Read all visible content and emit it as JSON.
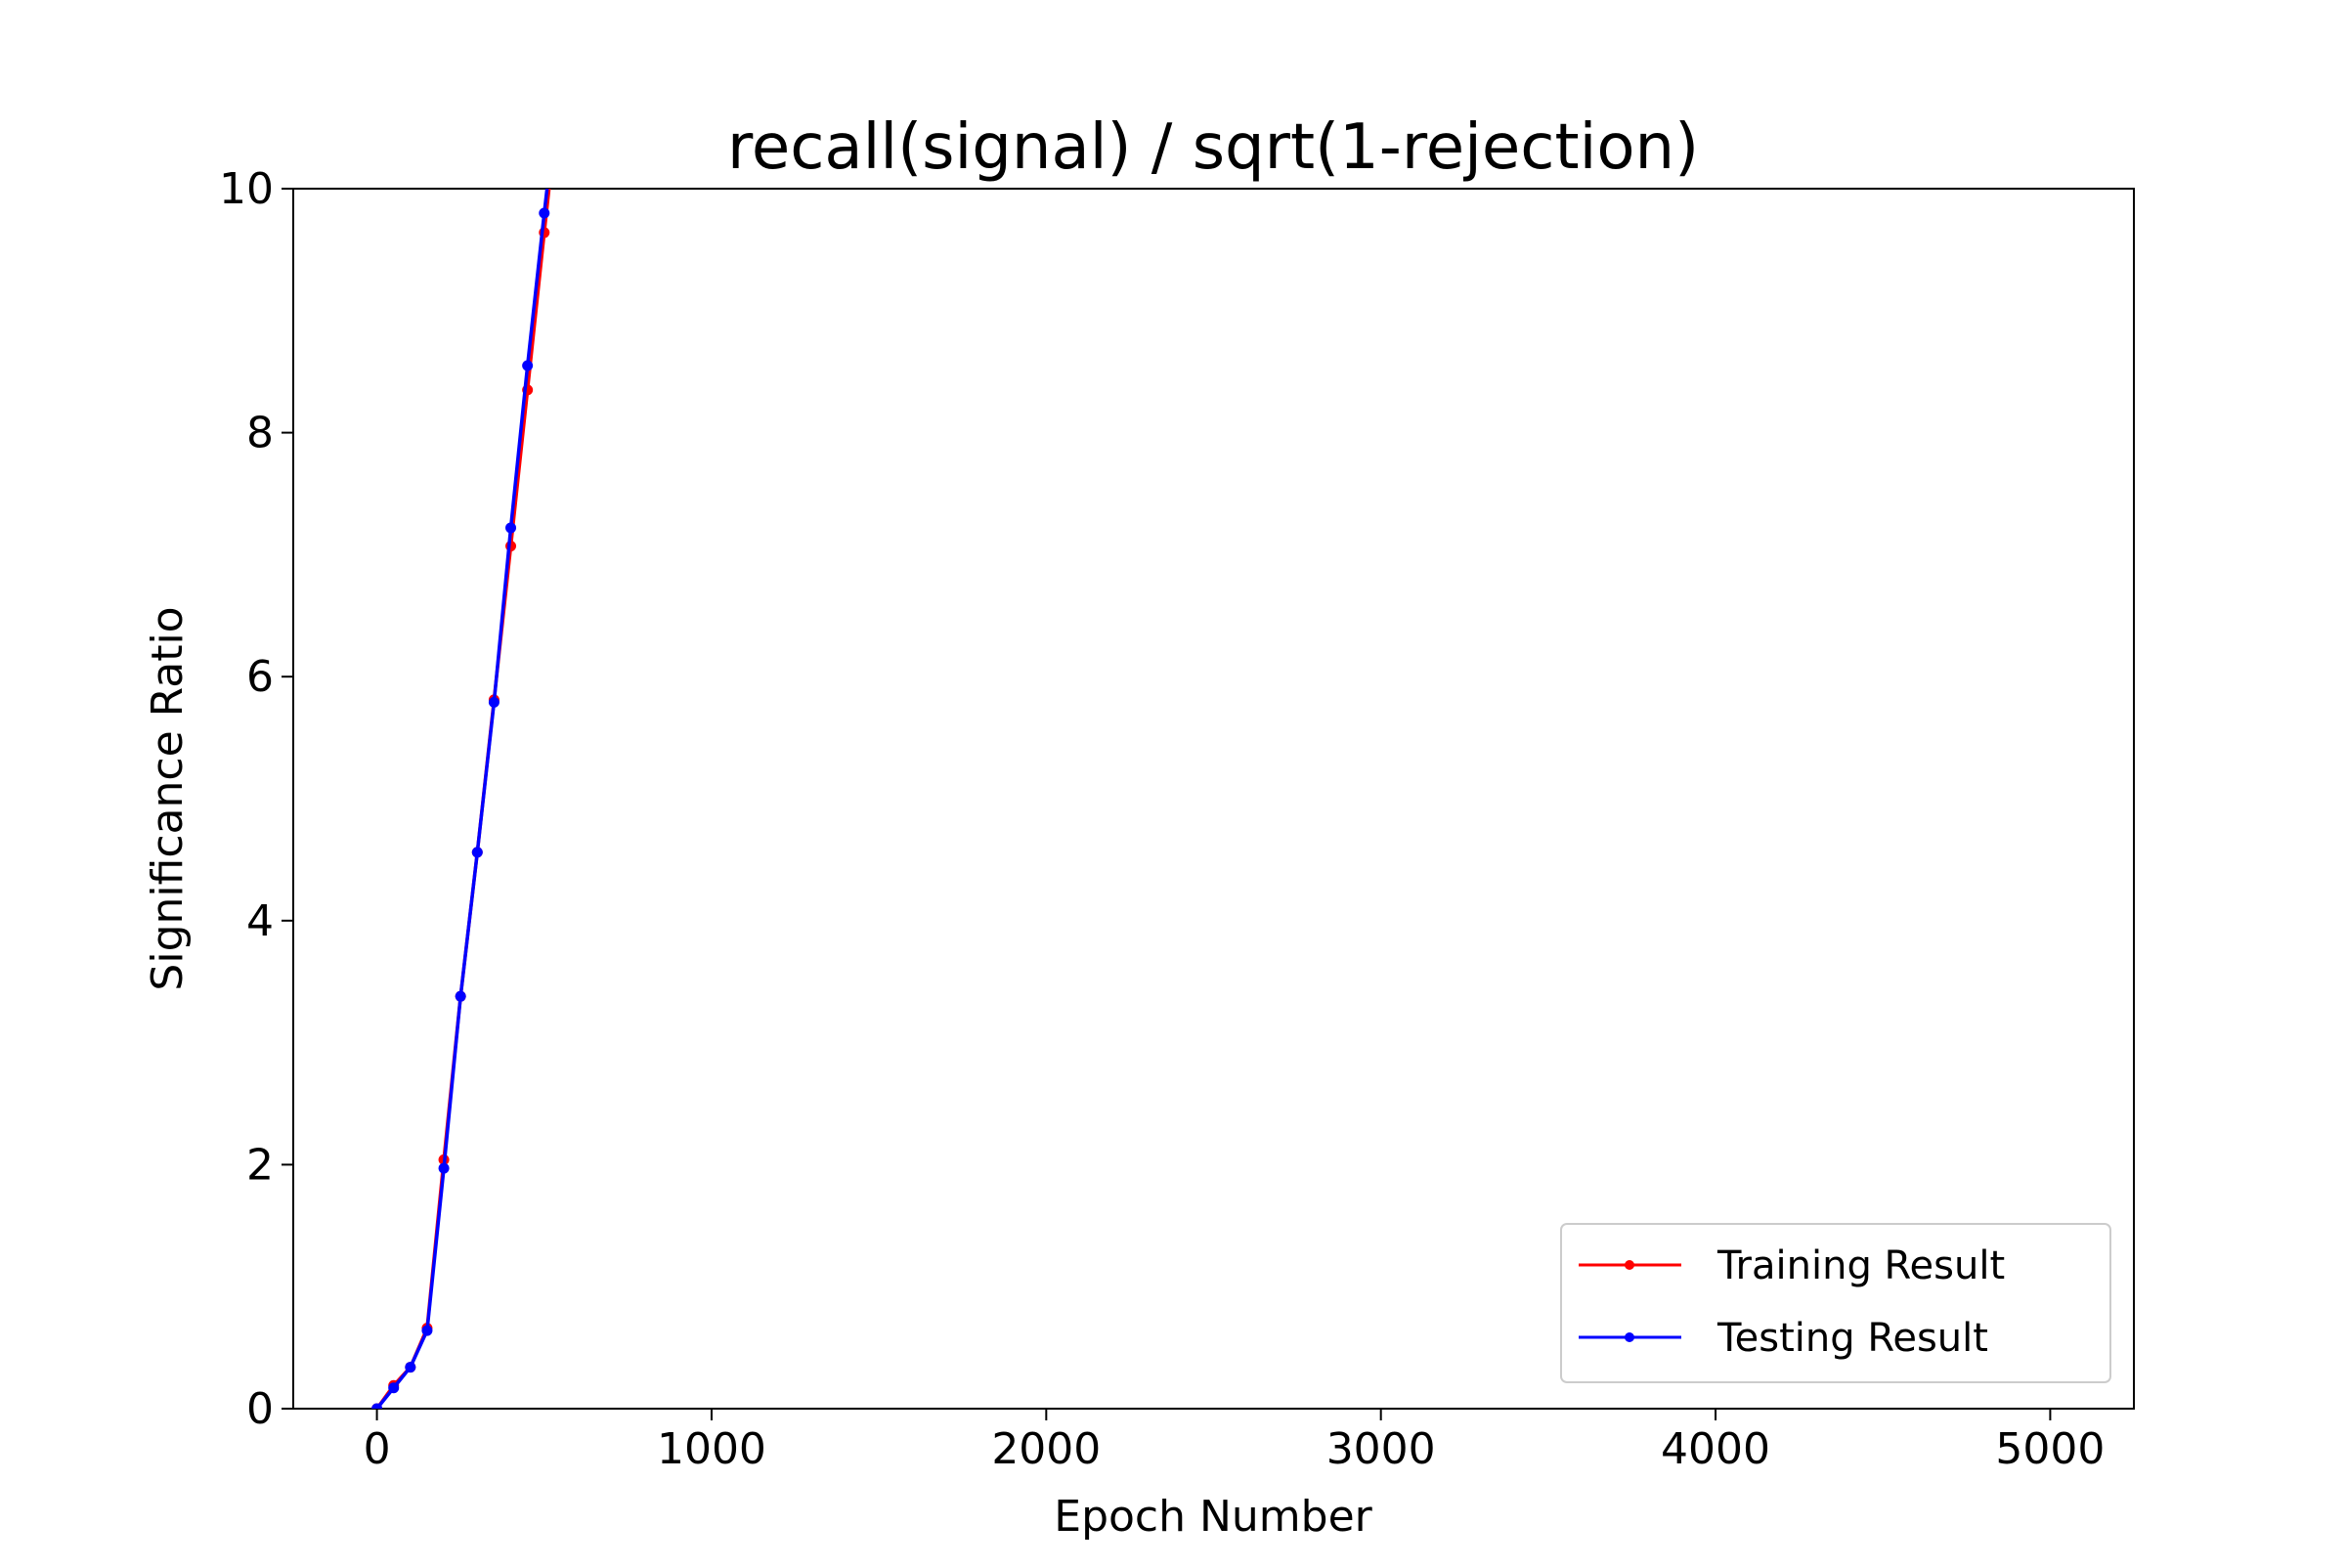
{
  "chart_data": {
    "type": "line",
    "title": "recall(signal) / sqrt(1-rejection)",
    "xlabel": "Epoch Number",
    "ylabel": "Significance Ratio",
    "xlim": [
      -250,
      5250
    ],
    "ylim": [
      0,
      10
    ],
    "xticks": [
      0,
      1000,
      2000,
      3000,
      4000,
      5000
    ],
    "yticks": [
      0,
      2,
      4,
      6,
      8,
      10
    ],
    "grid": false,
    "legend_position": "lower-right",
    "series": [
      {
        "name": "Training Result",
        "color": "#ff0000",
        "x": [
          0,
          50,
          100,
          150,
          200,
          250,
          300,
          350,
          400,
          450,
          500,
          550
        ],
        "y": [
          0,
          0.19,
          0.34,
          0.66,
          2.04,
          3.38,
          4.56,
          5.81,
          7.07,
          8.35,
          9.64,
          10.9
        ]
      },
      {
        "name": "Testing Result",
        "color": "#0000ff",
        "x": [
          0,
          50,
          100,
          150,
          200,
          250,
          300,
          350,
          400,
          450,
          500,
          550
        ],
        "y": [
          0,
          0.17,
          0.34,
          0.64,
          1.97,
          3.38,
          4.56,
          5.79,
          7.22,
          8.55,
          9.8,
          11.0
        ]
      }
    ]
  }
}
